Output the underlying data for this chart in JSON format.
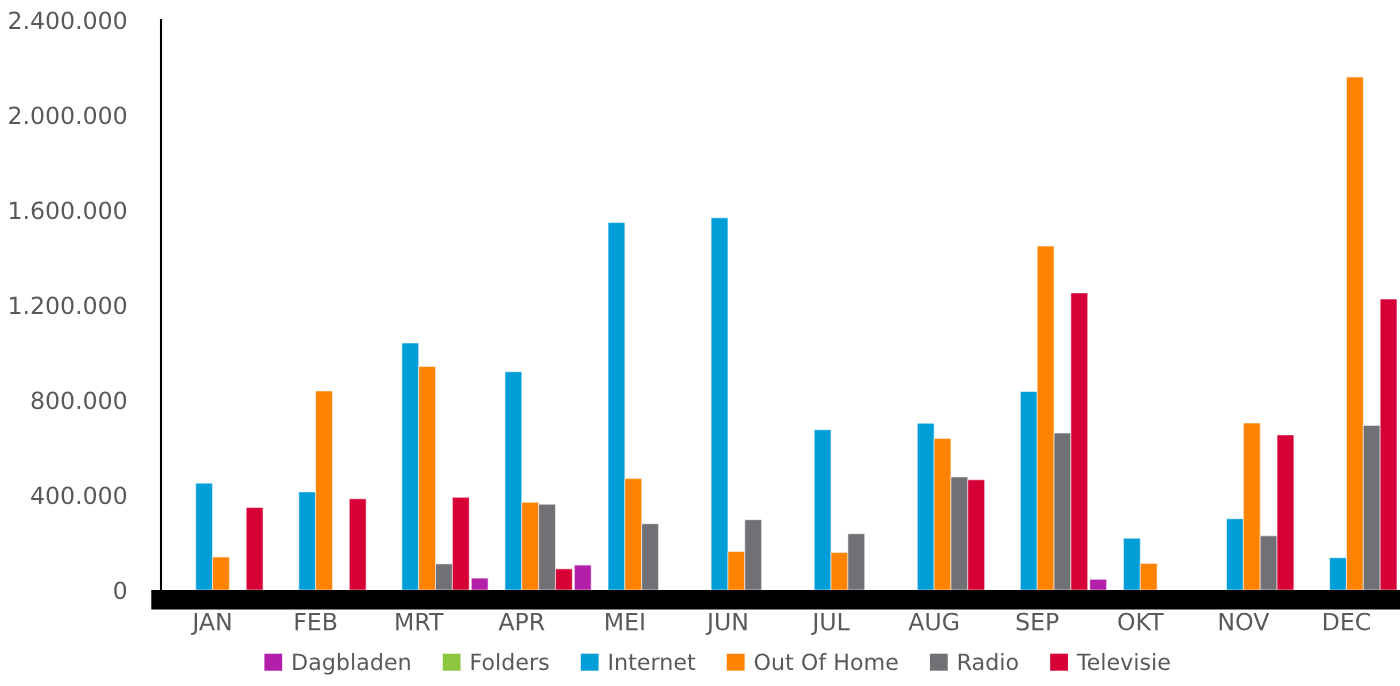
{
  "chart_data": {
    "type": "bar",
    "categories": [
      "JAN",
      "FEB",
      "MRT",
      "APR",
      "MEI",
      "JUN",
      "JUL",
      "AUG",
      "SEP",
      "OKT",
      "NOV",
      "DEC"
    ],
    "series": [
      {
        "name": "Dagbladen",
        "color": "#b31fa8",
        "values": [
          null,
          null,
          null,
          50000,
          105000,
          null,
          null,
          null,
          null,
          45000,
          null,
          null
        ]
      },
      {
        "name": "Folders",
        "color": "#8cc63f",
        "values": [
          null,
          null,
          null,
          null,
          null,
          null,
          null,
          null,
          null,
          null,
          null,
          null
        ]
      },
      {
        "name": "Internet",
        "color": "#009ed8",
        "values": [
          450000,
          413000,
          1040000,
          919000,
          1547000,
          1567000,
          675000,
          702000,
          836000,
          218000,
          300000,
          136000
        ]
      },
      {
        "name": "Out Of Home",
        "color": "#ff8200",
        "values": [
          139000,
          838000,
          941000,
          369000,
          469000,
          162000,
          158000,
          638000,
          1448000,
          112000,
          703000,
          2160000
        ]
      },
      {
        "name": "Radio",
        "color": "#717175",
        "values": [
          null,
          null,
          110000,
          361000,
          279000,
          296000,
          237000,
          476000,
          661000,
          null,
          228000,
          693000
        ]
      },
      {
        "name": "Televisie",
        "color": "#d60036",
        "values": [
          347000,
          384000,
          390000,
          89000,
          null,
          null,
          null,
          464000,
          1251000,
          null,
          653000,
          1225000
        ]
      }
    ],
    "ylim": [
      0,
      2400000
    ],
    "yticks": [
      {
        "value": 0,
        "label": "0"
      },
      {
        "value": 400000,
        "label": "400.000"
      },
      {
        "value": 800000,
        "label": "800.000"
      },
      {
        "value": 1200000,
        "label": "1.200.000"
      },
      {
        "value": 1600000,
        "label": "1.600.000"
      },
      {
        "value": 2000000,
        "label": "2.000.000"
      },
      {
        "value": 2400000,
        "label": "2.400.000"
      }
    ],
    "grid": false,
    "legend": "bottom"
  }
}
